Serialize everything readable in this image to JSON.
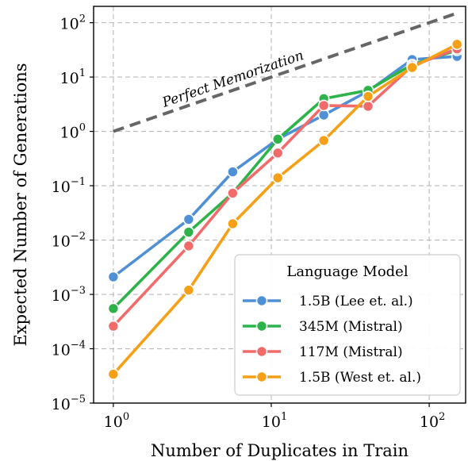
{
  "chart_data": {
    "type": "line",
    "xlabel": "Number of Duplicates in Train",
    "ylabel": "Expected Number of Generations",
    "x_scale": "log",
    "y_scale": "log",
    "xlim": [
      0.75,
      170
    ],
    "ylim": [
      1e-05,
      200
    ],
    "grid": true,
    "x_ticks": [
      {
        "value": 1,
        "base": "10",
        "exp": "0"
      },
      {
        "value": 10,
        "base": "10",
        "exp": "1"
      },
      {
        "value": 100,
        "base": "10",
        "exp": "2"
      }
    ],
    "y_ticks": [
      {
        "value": 1e-05,
        "base": "10",
        "exp": "−5"
      },
      {
        "value": 0.0001,
        "base": "10",
        "exp": "−4"
      },
      {
        "value": 0.001,
        "base": "10",
        "exp": "−3"
      },
      {
        "value": 0.01,
        "base": "10",
        "exp": "−2"
      },
      {
        "value": 0.1,
        "base": "10",
        "exp": "−1"
      },
      {
        "value": 1,
        "base": "10",
        "exp": "0"
      },
      {
        "value": 10,
        "base": "10",
        "exp": "1"
      },
      {
        "value": 100,
        "base": "10",
        "exp": "2"
      }
    ],
    "reference_line": {
      "label": "Perfect Memorization",
      "x": [
        1,
        150
      ],
      "y": [
        1,
        150
      ],
      "color": "#666666"
    },
    "legend": {
      "title": "Language Model",
      "placement": "lower-right"
    },
    "series": [
      {
        "name": "1.5B (Lee et. al.)",
        "color": "#4e8fd6",
        "x": [
          1,
          3,
          5.7,
          11,
          21.5,
          41,
          78,
          150
        ],
        "y": [
          0.0021,
          0.024,
          0.18,
          0.72,
          2.0,
          5.5,
          21,
          24
        ]
      },
      {
        "name": "345M (Mistral)",
        "color": "#2db34a",
        "x": [
          1,
          3,
          5.7,
          11,
          21.5,
          41,
          78,
          150
        ],
        "y": [
          0.00055,
          0.014,
          0.073,
          0.72,
          4.0,
          5.7,
          17,
          31
        ]
      },
      {
        "name": "117M (Mistral)",
        "color": "#f26b6b",
        "x": [
          1,
          3,
          5.7,
          11,
          21.5,
          41,
          78,
          150
        ],
        "y": [
          0.00026,
          0.0078,
          0.073,
          0.4,
          3.0,
          2.9,
          16,
          33
        ]
      },
      {
        "name": "1.5B (West et. al.)",
        "color": "#f5a016",
        "x": [
          1,
          3,
          5.7,
          11,
          21.5,
          41,
          78,
          150
        ],
        "y": [
          3.4e-05,
          0.0012,
          0.02,
          0.14,
          0.68,
          4.4,
          15,
          40
        ]
      }
    ]
  }
}
